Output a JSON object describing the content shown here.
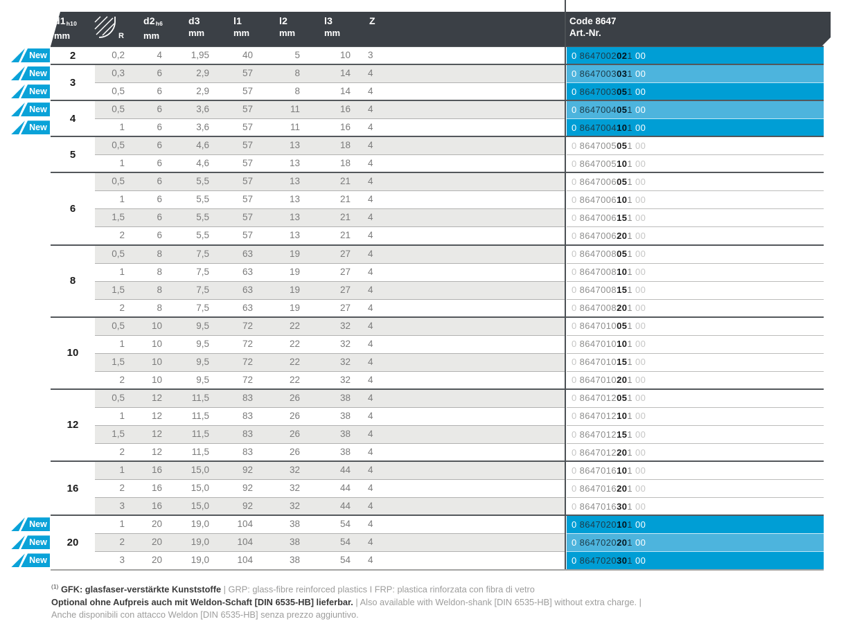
{
  "table": {
    "header": {
      "code_title": "Code 8647",
      "code_subtitle": "Art.-Nr.",
      "columns": [
        {
          "id": "d1",
          "label": "d1",
          "sub": "h10",
          "unit": "mm"
        },
        {
          "id": "r",
          "label": "R",
          "icon": "corner-radius-icon"
        },
        {
          "id": "d2",
          "label": "d2",
          "sub": "h6",
          "unit": "mm"
        },
        {
          "id": "d3",
          "label": "d3",
          "unit": "mm"
        },
        {
          "id": "l1",
          "label": "l1",
          "unit": "mm"
        },
        {
          "id": "l2",
          "label": "l2",
          "unit": "mm"
        },
        {
          "id": "l3",
          "label": "l3",
          "unit": "mm"
        },
        {
          "id": "z",
          "label": "Z"
        }
      ]
    },
    "new_badge_label": "New",
    "groups": [
      {
        "d1": "2",
        "rows": [
          {
            "r": "0,2",
            "d2": "4",
            "d3": "1,95",
            "l1": "40",
            "l2": "5",
            "l3": "10",
            "z": "3",
            "new": true,
            "code": {
              "p": "0",
              "m": "8647002",
              "b": "02",
              "t": "1",
              "s": "00"
            }
          }
        ]
      },
      {
        "d1": "3",
        "rows": [
          {
            "r": "0,3",
            "d2": "6",
            "d3": "2,9",
            "l1": "57",
            "l2": "8",
            "l3": "14",
            "z": "4",
            "new": true,
            "code": {
              "p": "0",
              "m": "8647003",
              "b": "03",
              "t": "1",
              "s": "00"
            }
          },
          {
            "r": "0,5",
            "d2": "6",
            "d3": "2,9",
            "l1": "57",
            "l2": "8",
            "l3": "14",
            "z": "4",
            "new": true,
            "code": {
              "p": "0",
              "m": "8647003",
              "b": "05",
              "t": "1",
              "s": "00"
            }
          }
        ]
      },
      {
        "d1": "4",
        "rows": [
          {
            "r": "0,5",
            "d2": "6",
            "d3": "3,6",
            "l1": "57",
            "l2": "11",
            "l3": "16",
            "z": "4",
            "new": true,
            "code": {
              "p": "0",
              "m": "8647004",
              "b": "05",
              "t": "1",
              "s": "00"
            }
          },
          {
            "r": "1",
            "d2": "6",
            "d3": "3,6",
            "l1": "57",
            "l2": "11",
            "l3": "16",
            "z": "4",
            "new": true,
            "code": {
              "p": "0",
              "m": "8647004",
              "b": "10",
              "t": "1",
              "s": "00"
            }
          }
        ]
      },
      {
        "d1": "5",
        "rows": [
          {
            "r": "0,5",
            "d2": "6",
            "d3": "4,6",
            "l1": "57",
            "l2": "13",
            "l3": "18",
            "z": "4",
            "new": false,
            "code": {
              "p": "0",
              "m": "8647005",
              "b": "05",
              "t": "1",
              "s": "00"
            }
          },
          {
            "r": "1",
            "d2": "6",
            "d3": "4,6",
            "l1": "57",
            "l2": "13",
            "l3": "18",
            "z": "4",
            "new": false,
            "code": {
              "p": "0",
              "m": "8647005",
              "b": "10",
              "t": "1",
              "s": "00"
            }
          }
        ]
      },
      {
        "d1": "6",
        "rows": [
          {
            "r": "0,5",
            "d2": "6",
            "d3": "5,5",
            "l1": "57",
            "l2": "13",
            "l3": "21",
            "z": "4",
            "new": false,
            "code": {
              "p": "0",
              "m": "8647006",
              "b": "05",
              "t": "1",
              "s": "00"
            }
          },
          {
            "r": "1",
            "d2": "6",
            "d3": "5,5",
            "l1": "57",
            "l2": "13",
            "l3": "21",
            "z": "4",
            "new": false,
            "code": {
              "p": "0",
              "m": "8647006",
              "b": "10",
              "t": "1",
              "s": "00"
            }
          },
          {
            "r": "1,5",
            "d2": "6",
            "d3": "5,5",
            "l1": "57",
            "l2": "13",
            "l3": "21",
            "z": "4",
            "new": false,
            "code": {
              "p": "0",
              "m": "8647006",
              "b": "15",
              "t": "1",
              "s": "00"
            }
          },
          {
            "r": "2",
            "d2": "6",
            "d3": "5,5",
            "l1": "57",
            "l2": "13",
            "l3": "21",
            "z": "4",
            "new": false,
            "code": {
              "p": "0",
              "m": "8647006",
              "b": "20",
              "t": "1",
              "s": "00"
            }
          }
        ]
      },
      {
        "d1": "8",
        "rows": [
          {
            "r": "0,5",
            "d2": "8",
            "d3": "7,5",
            "l1": "63",
            "l2": "19",
            "l3": "27",
            "z": "4",
            "new": false,
            "code": {
              "p": "0",
              "m": "8647008",
              "b": "05",
              "t": "1",
              "s": "00"
            }
          },
          {
            "r": "1",
            "d2": "8",
            "d3": "7,5",
            "l1": "63",
            "l2": "19",
            "l3": "27",
            "z": "4",
            "new": false,
            "code": {
              "p": "0",
              "m": "8647008",
              "b": "10",
              "t": "1",
              "s": "00"
            }
          },
          {
            "r": "1,5",
            "d2": "8",
            "d3": "7,5",
            "l1": "63",
            "l2": "19",
            "l3": "27",
            "z": "4",
            "new": false,
            "code": {
              "p": "0",
              "m": "8647008",
              "b": "15",
              "t": "1",
              "s": "00"
            }
          },
          {
            "r": "2",
            "d2": "8",
            "d3": "7,5",
            "l1": "63",
            "l2": "19",
            "l3": "27",
            "z": "4",
            "new": false,
            "code": {
              "p": "0",
              "m": "8647008",
              "b": "20",
              "t": "1",
              "s": "00"
            }
          }
        ]
      },
      {
        "d1": "10",
        "rows": [
          {
            "r": "0,5",
            "d2": "10",
            "d3": "9,5",
            "l1": "72",
            "l2": "22",
            "l3": "32",
            "z": "4",
            "new": false,
            "code": {
              "p": "0",
              "m": "8647010",
              "b": "05",
              "t": "1",
              "s": "00"
            }
          },
          {
            "r": "1",
            "d2": "10",
            "d3": "9,5",
            "l1": "72",
            "l2": "22",
            "l3": "32",
            "z": "4",
            "new": false,
            "code": {
              "p": "0",
              "m": "8647010",
              "b": "10",
              "t": "1",
              "s": "00"
            }
          },
          {
            "r": "1,5",
            "d2": "10",
            "d3": "9,5",
            "l1": "72",
            "l2": "22",
            "l3": "32",
            "z": "4",
            "new": false,
            "code": {
              "p": "0",
              "m": "8647010",
              "b": "15",
              "t": "1",
              "s": "00"
            }
          },
          {
            "r": "2",
            "d2": "10",
            "d3": "9,5",
            "l1": "72",
            "l2": "22",
            "l3": "32",
            "z": "4",
            "new": false,
            "code": {
              "p": "0",
              "m": "8647010",
              "b": "20",
              "t": "1",
              "s": "00"
            }
          }
        ]
      },
      {
        "d1": "12",
        "rows": [
          {
            "r": "0,5",
            "d2": "12",
            "d3": "11,5",
            "l1": "83",
            "l2": "26",
            "l3": "38",
            "z": "4",
            "new": false,
            "code": {
              "p": "0",
              "m": "8647012",
              "b": "05",
              "t": "1",
              "s": "00"
            }
          },
          {
            "r": "1",
            "d2": "12",
            "d3": "11,5",
            "l1": "83",
            "l2": "26",
            "l3": "38",
            "z": "4",
            "new": false,
            "code": {
              "p": "0",
              "m": "8647012",
              "b": "10",
              "t": "1",
              "s": "00"
            }
          },
          {
            "r": "1,5",
            "d2": "12",
            "d3": "11,5",
            "l1": "83",
            "l2": "26",
            "l3": "38",
            "z": "4",
            "new": false,
            "code": {
              "p": "0",
              "m": "8647012",
              "b": "15",
              "t": "1",
              "s": "00"
            }
          },
          {
            "r": "2",
            "d2": "12",
            "d3": "11,5",
            "l1": "83",
            "l2": "26",
            "l3": "38",
            "z": "4",
            "new": false,
            "code": {
              "p": "0",
              "m": "8647012",
              "b": "20",
              "t": "1",
              "s": "00"
            }
          }
        ]
      },
      {
        "d1": "16",
        "rows": [
          {
            "r": "1",
            "d2": "16",
            "d3": "15,0",
            "l1": "92",
            "l2": "32",
            "l3": "44",
            "z": "4",
            "new": false,
            "code": {
              "p": "0",
              "m": "8647016",
              "b": "10",
              "t": "1",
              "s": "00"
            }
          },
          {
            "r": "2",
            "d2": "16",
            "d3": "15,0",
            "l1": "92",
            "l2": "32",
            "l3": "44",
            "z": "4",
            "new": false,
            "code": {
              "p": "0",
              "m": "8647016",
              "b": "20",
              "t": "1",
              "s": "00"
            }
          },
          {
            "r": "3",
            "d2": "16",
            "d3": "15,0",
            "l1": "92",
            "l2": "32",
            "l3": "44",
            "z": "4",
            "new": false,
            "code": {
              "p": "0",
              "m": "8647016",
              "b": "30",
              "t": "1",
              "s": "00"
            }
          }
        ]
      },
      {
        "d1": "20",
        "rows": [
          {
            "r": "1",
            "d2": "20",
            "d3": "19,0",
            "l1": "104",
            "l2": "38",
            "l3": "54",
            "z": "4",
            "new": true,
            "code": {
              "p": "0",
              "m": "8647020",
              "b": "10",
              "t": "1",
              "s": "00"
            }
          },
          {
            "r": "2",
            "d2": "20",
            "d3": "19,0",
            "l1": "104",
            "l2": "38",
            "l3": "54",
            "z": "4",
            "new": true,
            "code": {
              "p": "0",
              "m": "8647020",
              "b": "20",
              "t": "1",
              "s": "00"
            }
          },
          {
            "r": "3",
            "d2": "20",
            "d3": "19,0",
            "l1": "104",
            "l2": "38",
            "l3": "54",
            "z": "4",
            "new": true,
            "code": {
              "p": "0",
              "m": "8647020",
              "b": "30",
              "t": "1",
              "s": "00"
            }
          }
        ]
      }
    ]
  },
  "footnotes": {
    "line1_sup": "(1)",
    "line1_de": "GFK: glasfaser-verstärkte Kunststoffe",
    "line1_rest": " | GRP: glass-fibre reinforced plastics I FRP: plastica rinforzata con fibra di vetro",
    "line2_de": "Optional ohne Aufpreis auch mit Weldon-Schaft [DIN 6535-HB] lieferbar.",
    "line2_rest": " | Also available with Weldon-shank [DIN 6535-HB] without extra charge. |",
    "line3": "Anche disponibili con attacco Weldon [DIN 6535-HB] senza prezzo aggiuntivo."
  },
  "colors": {
    "header_bg": "#3b4046",
    "accent_strong": "#009ed5",
    "accent_light": "#4db4dd",
    "badge_blue": "#0aa2d8",
    "stripe": "#e9e9e7"
  }
}
